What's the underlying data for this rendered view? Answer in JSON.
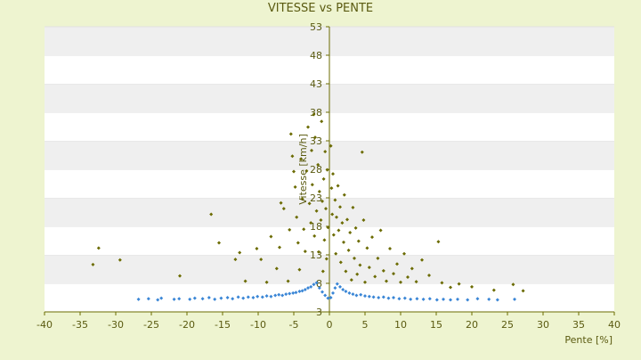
{
  "chart_data": {
    "type": "scatter",
    "title": "VITESSE vs PENTE",
    "xlabel": "Pente [%]",
    "ylabel": "Vitesse [km/h]",
    "xlim": [
      -40,
      40
    ],
    "ylim": [
      3,
      53
    ],
    "x_ticks": [
      -40,
      -35,
      -30,
      -25,
      -20,
      -15,
      -10,
      -5,
      0,
      5,
      10,
      15,
      20,
      25,
      30,
      35,
      40
    ],
    "y_ticks": [
      3,
      8,
      13,
      18,
      23,
      28,
      33,
      38,
      43,
      48,
      53
    ],
    "grid": "horizontal alternating bands",
    "legend": "none",
    "colors": {
      "page_background": "#eef4d0",
      "band_light": "#ffffff",
      "band_dark": "#efefef",
      "axis": "#6b6b00",
      "text": "#5a5a10",
      "series_low": "#3a86d6",
      "series_high": "#6b6b00"
    },
    "series": [
      {
        "color": "#6b6b00",
        "marker": "diamond",
        "points": [
          [
            -33.2,
            11.3
          ],
          [
            -32.4,
            14.2
          ],
          [
            -29.4,
            12.1
          ],
          [
            -21,
            9.3
          ],
          [
            -16.6,
            20.1
          ],
          [
            -15.5,
            15.1
          ],
          [
            -13.2,
            12.2
          ],
          [
            -12.6,
            13.4
          ],
          [
            -11.8,
            8.4
          ],
          [
            -10.2,
            14.1
          ],
          [
            -9.6,
            12.2
          ],
          [
            -8.8,
            8.2
          ],
          [
            -8.2,
            16.2
          ],
          [
            -7.4,
            10.6
          ],
          [
            -7,
            14.3
          ],
          [
            -6.8,
            22.1
          ],
          [
            -6.4,
            21.1
          ],
          [
            -5.8,
            8.4
          ],
          [
            -5.6,
            17.4
          ],
          [
            -5.4,
            34.2
          ],
          [
            -5.2,
            30.3
          ],
          [
            -5,
            27.6
          ],
          [
            -4.8,
            24.9
          ],
          [
            -4.6,
            19.6
          ],
          [
            -4.4,
            15.1
          ],
          [
            -4.2,
            10.4
          ],
          [
            -4,
            29.8
          ],
          [
            -3.8,
            22.8
          ],
          [
            -3.6,
            17.5
          ],
          [
            -3.4,
            13.6
          ],
          [
            -3.2,
            27.7
          ],
          [
            -3,
            35.4
          ],
          [
            -2.8,
            22
          ],
          [
            -2.6,
            18.6
          ],
          [
            -2.5,
            31.3
          ],
          [
            -2.4,
            25.3
          ],
          [
            -2.2,
            37.6
          ],
          [
            -2.1,
            16.3
          ],
          [
            -2,
            33.6
          ],
          [
            -1.8,
            20.7
          ],
          [
            -1.6,
            28.8
          ],
          [
            -1.5,
            13.5
          ],
          [
            -1.4,
            24.1
          ],
          [
            -1.2,
            19.1
          ],
          [
            -1.1,
            36.4
          ],
          [
            -1,
            22.4
          ],
          [
            -0.9,
            10.1
          ],
          [
            -0.8,
            26.3
          ],
          [
            -0.7,
            15.6
          ],
          [
            -0.6,
            31.1
          ],
          [
            -0.5,
            21.1
          ],
          [
            -0.4,
            12.3
          ],
          [
            -0.3,
            27.9
          ],
          [
            -0.2,
            17.8
          ],
          [
            0.2,
            32.1
          ],
          [
            0.3,
            24.7
          ],
          [
            0.4,
            20.1
          ],
          [
            0.5,
            27.2
          ],
          [
            0.6,
            16.5
          ],
          [
            0.8,
            22.6
          ],
          [
            0.9,
            13.2
          ],
          [
            1,
            19.6
          ],
          [
            1.2,
            25.1
          ],
          [
            1.3,
            17.3
          ],
          [
            1.5,
            21.4
          ],
          [
            1.6,
            11.7
          ],
          [
            1.8,
            18.6
          ],
          [
            2,
            15.2
          ],
          [
            2.1,
            23.5
          ],
          [
            2.3,
            10.1
          ],
          [
            2.5,
            19.2
          ],
          [
            2.7,
            13.8
          ],
          [
            2.9,
            16.9
          ],
          [
            3.1,
            8.6
          ],
          [
            3.3,
            21.3
          ],
          [
            3.5,
            12.4
          ],
          [
            3.7,
            17.7
          ],
          [
            3.9,
            9.6
          ],
          [
            4.1,
            15.4
          ],
          [
            4.3,
            11.2
          ],
          [
            4.6,
            31
          ],
          [
            4.8,
            19.1
          ],
          [
            5,
            8.2
          ],
          [
            5.3,
            14.2
          ],
          [
            5.6,
            10.8
          ],
          [
            6,
            16.1
          ],
          [
            6.4,
            9.2
          ],
          [
            6.8,
            12.4
          ],
          [
            7.2,
            17.3
          ],
          [
            7.6,
            10.2
          ],
          [
            8,
            8.4
          ],
          [
            8.5,
            14.1
          ],
          [
            9,
            9.7
          ],
          [
            9.5,
            11.4
          ],
          [
            10,
            8.2
          ],
          [
            10.5,
            13.2
          ],
          [
            11,
            9.1
          ],
          [
            11.6,
            10.6
          ],
          [
            12.2,
            8.3
          ],
          [
            13,
            12.1
          ],
          [
            14,
            9.4
          ],
          [
            15.3,
            15.3
          ],
          [
            15.8,
            8.1
          ],
          [
            17,
            7.3
          ],
          [
            18.2,
            7.9
          ],
          [
            20,
            7.4
          ],
          [
            23.1,
            6.8
          ],
          [
            25.8,
            7.8
          ],
          [
            27.2,
            6.7
          ]
        ]
      },
      {
        "color": "#3a86d6",
        "marker": "diamond",
        "points": [
          [
            -26.8,
            5.2
          ],
          [
            -25.4,
            5.3
          ],
          [
            -24.1,
            5.1
          ],
          [
            -23.6,
            5.4
          ],
          [
            -21.8,
            5.2
          ],
          [
            -21.1,
            5.3
          ],
          [
            -19.6,
            5.2
          ],
          [
            -18.9,
            5.4
          ],
          [
            -17.8,
            5.3
          ],
          [
            -16.9,
            5.5
          ],
          [
            -16.1,
            5.2
          ],
          [
            -15.2,
            5.4
          ],
          [
            -14.3,
            5.5
          ],
          [
            -13.6,
            5.3
          ],
          [
            -12.8,
            5.6
          ],
          [
            -12.1,
            5.4
          ],
          [
            -11.4,
            5.6
          ],
          [
            -10.7,
            5.5
          ],
          [
            -10.1,
            5.7
          ],
          [
            -9.4,
            5.6
          ],
          [
            -8.8,
            5.8
          ],
          [
            -8.2,
            5.7
          ],
          [
            -7.6,
            5.9
          ],
          [
            -7.1,
            6
          ],
          [
            -6.6,
            5.9
          ],
          [
            -6.1,
            6.1
          ],
          [
            -5.6,
            6.2
          ],
          [
            -5.1,
            6.3
          ],
          [
            -4.7,
            6.4
          ],
          [
            -4.2,
            6.6
          ],
          [
            -3.8,
            6.7
          ],
          [
            -3.4,
            6.9
          ],
          [
            -3,
            7.2
          ],
          [
            -2.6,
            7.4
          ],
          [
            -2.2,
            7.8
          ],
          [
            -1.8,
            8.1
          ],
          [
            -1.4,
            7.2
          ],
          [
            -1,
            6.5
          ],
          [
            -0.6,
            5.9
          ],
          [
            -0.2,
            5.4
          ],
          [
            0.2,
            5.5
          ],
          [
            0.5,
            6.3
          ],
          [
            0.8,
            7.2
          ],
          [
            1.1,
            7.9
          ],
          [
            1.5,
            7.4
          ],
          [
            1.9,
            6.9
          ],
          [
            2.3,
            6.6
          ],
          [
            2.8,
            6.3
          ],
          [
            3.3,
            6.1
          ],
          [
            3.8,
            5.9
          ],
          [
            4.4,
            6
          ],
          [
            5,
            5.8
          ],
          [
            5.6,
            5.7
          ],
          [
            6.2,
            5.6
          ],
          [
            6.9,
            5.5
          ],
          [
            7.6,
            5.6
          ],
          [
            8.3,
            5.4
          ],
          [
            9,
            5.5
          ],
          [
            9.8,
            5.3
          ],
          [
            10.6,
            5.4
          ],
          [
            11.4,
            5.2
          ],
          [
            12.3,
            5.3
          ],
          [
            13.2,
            5.2
          ],
          [
            14.1,
            5.3
          ],
          [
            15.1,
            5.1
          ],
          [
            16,
            5.2
          ],
          [
            17,
            5.1
          ],
          [
            18,
            5.2
          ],
          [
            19.4,
            5.1
          ],
          [
            20.8,
            5.3
          ],
          [
            22.4,
            5.2
          ],
          [
            23.6,
            5.1
          ],
          [
            26,
            5.2
          ]
        ]
      }
    ]
  }
}
